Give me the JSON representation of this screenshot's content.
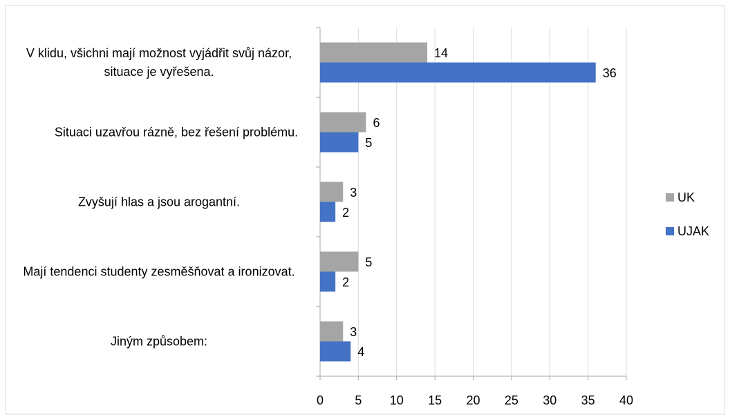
{
  "chart_data": {
    "type": "bar",
    "orientation": "horizontal",
    "categories": [
      "V klidu, všichni mají možnost vyjádřit svůj názor, situace je vyřešena.",
      "Situaci uzavřou rázně, bez řešení problému.",
      "Zvyšují hlas a jsou arogantní.",
      "Mají tendenci studenty zesměšňovat a ironizovat.",
      "Jiným způsobem:"
    ],
    "series": [
      {
        "name": "UK",
        "color": "#a5a5a5",
        "values": [
          14,
          6,
          3,
          5,
          3
        ]
      },
      {
        "name": "UJAK",
        "color": "#4472c4",
        "values": [
          36,
          5,
          2,
          2,
          4
        ]
      }
    ],
    "xlim": [
      0,
      40
    ],
    "xticks": [
      0,
      5,
      10,
      15,
      20,
      25,
      30,
      35,
      40
    ],
    "grid": true,
    "legend": "right"
  }
}
